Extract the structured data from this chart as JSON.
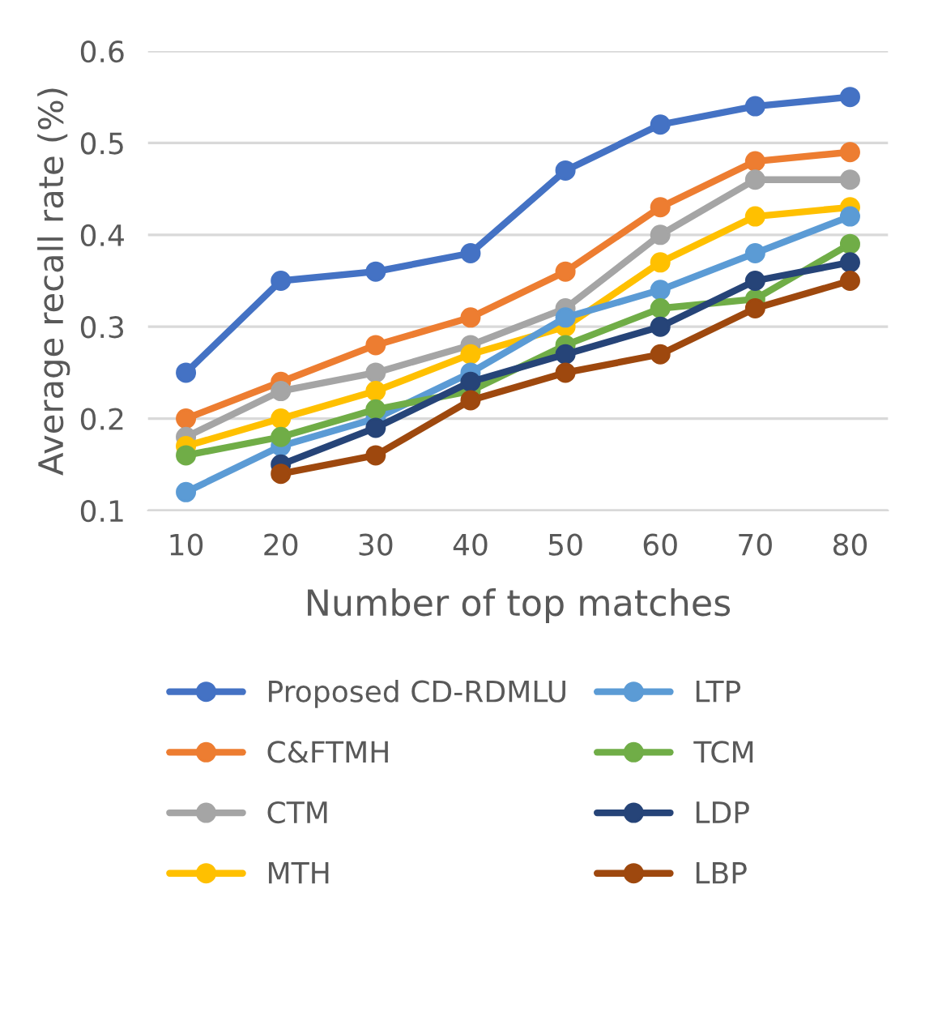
{
  "chart_data": {
    "type": "line",
    "xlabel": "Number of top matches",
    "ylabel": "Average recall rate (%)",
    "categories": [
      "10",
      "20",
      "30",
      "40",
      "50",
      "60",
      "70",
      "80"
    ],
    "ylim": [
      0.1,
      0.6
    ],
    "yticks": [
      0.1,
      0.2,
      0.3,
      0.4,
      0.5,
      0.6
    ],
    "grid": "y",
    "legend": "bottom",
    "marker": "circle",
    "line_style": "solid",
    "series": [
      {
        "name": "Proposed CD-RDMLU",
        "color": "#4472c4",
        "values": [
          0.25,
          0.35,
          0.36,
          0.38,
          0.47,
          0.52,
          0.54,
          0.55
        ]
      },
      {
        "name": "C&FTMH",
        "color": "#ed7d31",
        "values": [
          0.2,
          0.24,
          0.28,
          0.31,
          0.36,
          0.43,
          0.48,
          0.49
        ]
      },
      {
        "name": "CTM",
        "color": "#a5a5a5",
        "values": [
          0.18,
          0.23,
          0.25,
          0.28,
          0.32,
          0.4,
          0.46,
          0.46
        ]
      },
      {
        "name": "MTH",
        "color": "#ffc000",
        "values": [
          0.17,
          0.2,
          0.23,
          0.27,
          0.3,
          0.37,
          0.42,
          0.43
        ]
      },
      {
        "name": "LTP",
        "color": "#5b9bd5",
        "values": [
          0.12,
          0.17,
          0.2,
          0.25,
          0.31,
          0.34,
          0.38,
          0.42
        ]
      },
      {
        "name": "TCM",
        "color": "#70ad47",
        "values": [
          0.16,
          0.18,
          0.21,
          0.23,
          0.28,
          0.32,
          0.33,
          0.39
        ]
      },
      {
        "name": "LDP",
        "color": "#264478",
        "values": [
          null,
          0.15,
          0.19,
          0.24,
          0.27,
          0.3,
          0.35,
          0.37
        ]
      },
      {
        "name": "LBP",
        "color": "#9e480e",
        "values": [
          null,
          0.14,
          0.16,
          0.22,
          0.25,
          0.27,
          0.32,
          0.35
        ]
      }
    ]
  }
}
